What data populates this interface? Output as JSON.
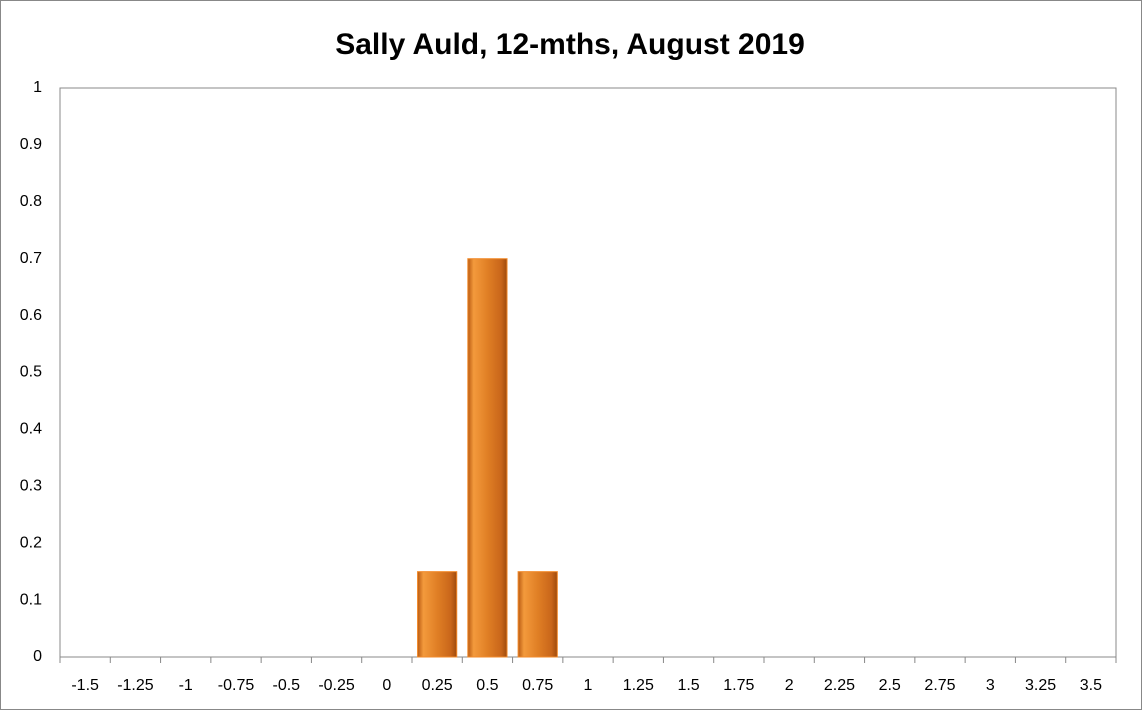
{
  "chart_data": {
    "type": "bar",
    "title": "Sally Auld, 12-mths, August 2019",
    "categories": [
      "-1.5",
      "-1.25",
      "-1",
      "-0.75",
      "-0.5",
      "-0.25",
      "0",
      "0.25",
      "0.5",
      "0.75",
      "1",
      "1.25",
      "1.5",
      "1.75",
      "2",
      "2.25",
      "2.5",
      "2.75",
      "3",
      "3.25",
      "3.5"
    ],
    "values": [
      0,
      0,
      0,
      0,
      0,
      0,
      0,
      0.15,
      0.7,
      0.15,
      0,
      0,
      0,
      0,
      0,
      0,
      0,
      0,
      0,
      0,
      0
    ],
    "color": "#f28a2a",
    "ylim": [
      0,
      1
    ],
    "yticks": [
      0,
      0.1,
      0.2,
      0.3,
      0.4,
      0.5,
      0.6,
      0.7,
      0.8,
      0.9,
      1
    ],
    "grid": false
  }
}
